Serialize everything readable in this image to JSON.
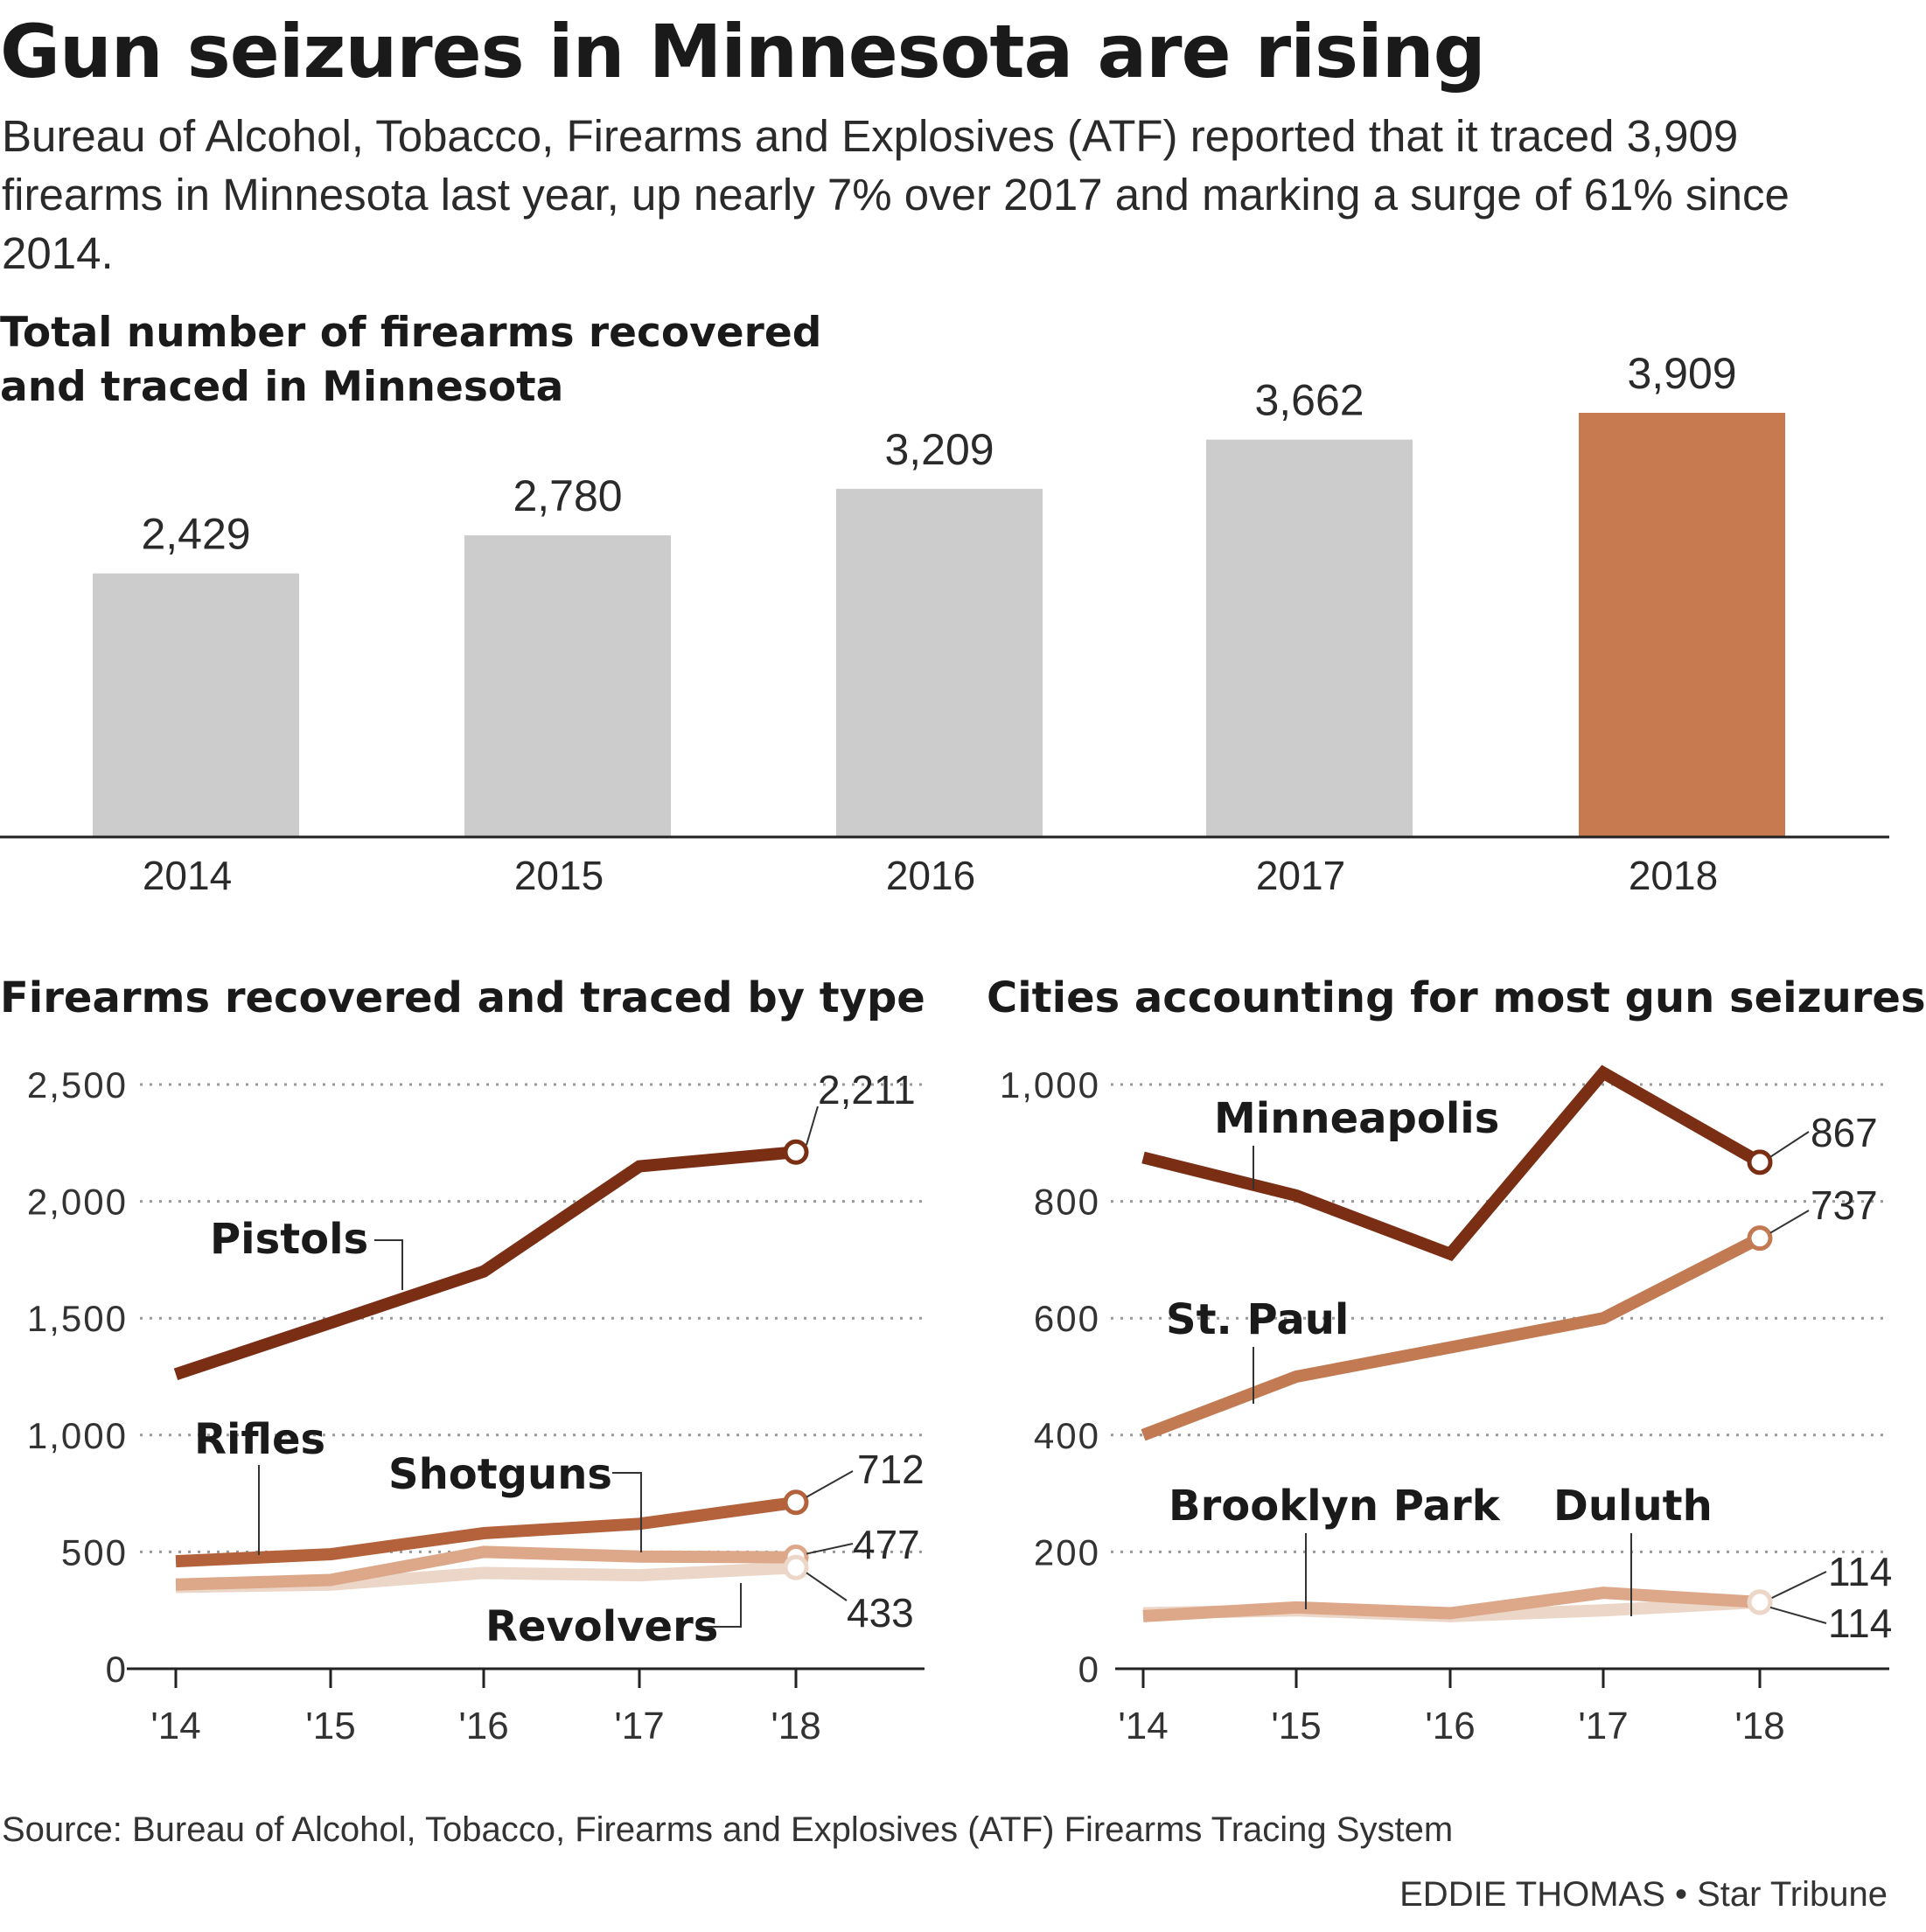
{
  "headline": "Gun seizures in Minnesota are rising",
  "dek": "Bureau of Alcohol, Tobacco, Firearms and Explosives (ATF) reported that it traced 3,909 firearms in Minnesota last year, up nearly 7% over 2017 and marking a surge of 61% since 2014.",
  "source": "Source: Bureau of Alcohol, Tobacco, Firearms and Explosives (ATF) Firearms Tracing System",
  "credit": "EDDIE THOMAS • Star Tribune",
  "colors": {
    "bar_default": "#cccccc",
    "bar_highlight": "#c77a4f",
    "pistols": "#7a2e14",
    "rifles": "#b3623c",
    "shotguns": "#dca889",
    "revolvers": "#ecd6c8",
    "minneapolis": "#7a2e14",
    "st_paul": "#c17a52",
    "brooklyn_park": "#dca889",
    "duluth": "#ecd6c8"
  },
  "chart_data": [
    {
      "type": "bar",
      "title": "Total number of firearms recovered and traced in Minnesota",
      "title_lines": [
        "Total number of firearms recovered",
        "and traced in Minnesota"
      ],
      "categories": [
        "2014",
        "2015",
        "2016",
        "2017",
        "2018"
      ],
      "values": [
        2429,
        2780,
        3209,
        3662,
        3909
      ],
      "value_labels": [
        "2,429",
        "2,780",
        "3,209",
        "3,662",
        "3,909"
      ],
      "highlight_index": 4,
      "ylim": [
        0,
        4000
      ],
      "grid": false
    },
    {
      "type": "line",
      "title": "Firearms recovered and traced by type",
      "x": [
        "'14",
        "'15",
        "'16",
        "'17",
        "'18"
      ],
      "ylim": [
        0,
        2500
      ],
      "yticks": [
        0,
        500,
        1000,
        1500,
        2000,
        2500
      ],
      "ytick_labels": [
        "0",
        "500",
        "1,000",
        "1,500",
        "2,000",
        "2,500"
      ],
      "grid": true,
      "series": [
        {
          "name": "Pistols",
          "values": [
            1260,
            1480,
            1700,
            2150,
            2211
          ],
          "end_label": "2,211",
          "color_key": "pistols"
        },
        {
          "name": "Rifles",
          "values": [
            460,
            490,
            580,
            620,
            712
          ],
          "end_label": "712",
          "color_key": "rifles"
        },
        {
          "name": "Shotguns",
          "values": [
            360,
            380,
            500,
            480,
            477
          ],
          "end_label": "477",
          "color_key": "shotguns"
        },
        {
          "name": "Revolvers",
          "values": [
            350,
            360,
            410,
            400,
            433
          ],
          "end_label": "433",
          "color_key": "revolvers"
        }
      ]
    },
    {
      "type": "line",
      "title": "Cities accounting for most gun seizures",
      "x": [
        "'14",
        "'15",
        "'16",
        "'17",
        "'18"
      ],
      "ylim": [
        0,
        1000
      ],
      "yticks": [
        0,
        200,
        400,
        600,
        800,
        1000
      ],
      "ytick_labels": [
        "0",
        "200",
        "400",
        "600",
        "800",
        "1,000"
      ],
      "grid": true,
      "series": [
        {
          "name": "Minneapolis",
          "values": [
            875,
            810,
            710,
            1020,
            867
          ],
          "end_label": "867",
          "color_key": "minneapolis"
        },
        {
          "name": "St. Paul",
          "values": [
            400,
            500,
            550,
            600,
            737
          ],
          "end_label": "737",
          "color_key": "st_paul"
        },
        {
          "name": "Brooklyn Park",
          "values": [
            90,
            105,
            95,
            130,
            114
          ],
          "end_label": "114",
          "color_key": "brooklyn_park"
        },
        {
          "name": "Duluth",
          "values": [
            95,
            100,
            90,
            100,
            114
          ],
          "end_label": "114",
          "color_key": "duluth"
        }
      ]
    }
  ]
}
